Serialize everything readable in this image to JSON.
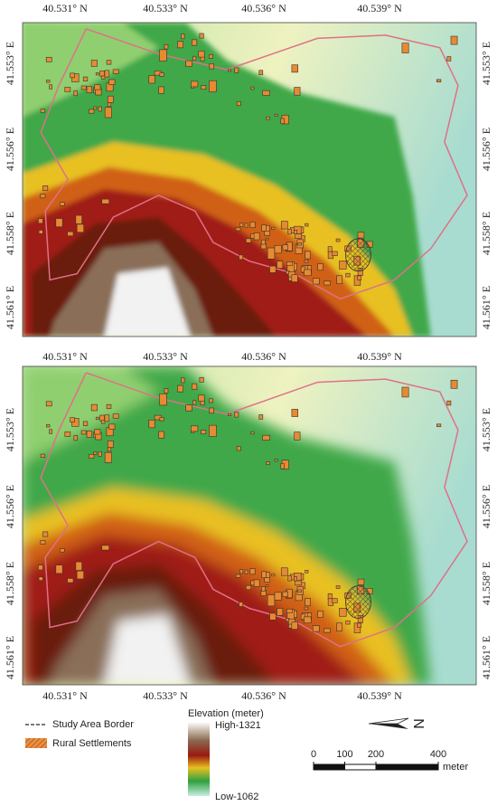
{
  "panels": [
    {
      "top_labels": [
        "40.531° N",
        "40.533° N",
        "40.536° N",
        "40.539° N"
      ],
      "left_labels": [
        "41.553° E",
        "41.556° E",
        "41.558° E",
        "41.561° E"
      ],
      "right_labels": [
        "41.553° E",
        "41.556° E",
        "41.558° E",
        "41.561° E"
      ]
    },
    {
      "top_labels": [
        "40.531° N",
        "40.533° N",
        "40.536° N",
        "40.539° N"
      ],
      "bottom_labels": [
        "40.531° N",
        "40.533° N",
        "40.536° N",
        "40.539° N"
      ],
      "left_labels": [
        "41.553° E",
        "41.556° E",
        "41.558° E",
        "41.561° E"
      ],
      "right_labels": [
        "41.553° E",
        "41.556° E",
        "41.558° E",
        "41.561° E"
      ]
    }
  ],
  "legend": {
    "study_area_border": "Study Area Border",
    "rural_settlements": "Rural Settlements"
  },
  "elevation_legend": {
    "title": "Elevation (meter)",
    "high": "High-1321",
    "low": "Low-1062"
  },
  "scale_bar": {
    "ticks": [
      0,
      100,
      200,
      400
    ],
    "unit": "meter"
  },
  "north_arrow": "N"
}
